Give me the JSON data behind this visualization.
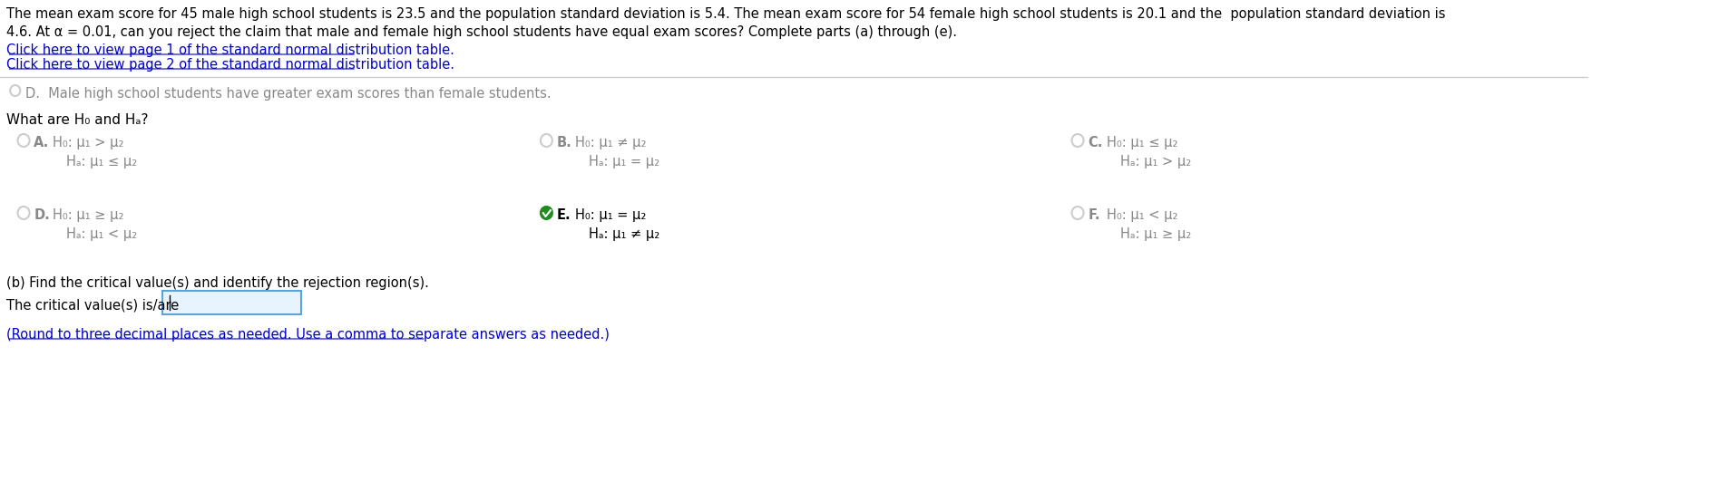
{
  "bg_color": "#f5f5f5",
  "white": "#ffffff",
  "black": "#000000",
  "gray": "#888888",
  "light_gray": "#cccccc",
  "blue_link": "#0000cc",
  "green_check": "#228B22",
  "light_blue_box": "#d0e8f8",
  "header_text": "The mean exam score for 45 male high school students is 23.5 and the population standard deviation is 5.4. The mean exam score for 54 female high school students is 20.1 and the  population standard deviation is\n4.6. At α = 0.01, can you reject the claim that male and female high school students have equal exam scores? Complete parts (a) through (e).",
  "link1": "Click here to view page 1 of the standard normal distribution table.",
  "link2": "Click here to view page 2 of the standard normal distribution table.",
  "option_d_text": "D.  Male high school students have greater exam scores than female students.",
  "question_text": "What are H₀ and Hₐ?",
  "options": [
    {
      "label": "A.",
      "h0": "H₀: μ₁ > μ₂",
      "ha": "Hₐ: μ₁ ≤ μ₂",
      "selected": false
    },
    {
      "label": "B.",
      "h0": "H₀: μ₁ ≠ μ₂",
      "ha": "Hₐ: μ₁ = μ₂",
      "selected": false
    },
    {
      "label": "C.",
      "h0": "H₀: μ₁ ≤ μ₂",
      "ha": "Hₐ: μ₁ > μ₂",
      "selected": false
    },
    {
      "label": "D.",
      "h0": "H₀: μ₁ ≥ μ₂",
      "ha": "Hₐ: μ₁ < μ₂",
      "selected": false
    },
    {
      "label": "E.",
      "h0": "H₀: μ₁ = μ₂",
      "ha": "Hₐ: μ₁ ≠ μ₂",
      "selected": true
    },
    {
      "label": "F.",
      "h0": "H₀: μ₁ < μ₂",
      "ha": "Hₐ: μ₁ ≥ μ₂",
      "selected": false
    }
  ],
  "part_b_text": "(b) Find the critical value(s) and identify the rejection region(s).",
  "critical_label": "The critical value(s) is/are",
  "round_note": "(Round to three decimal places as needed. Use a comma to separate answers as needed.)"
}
